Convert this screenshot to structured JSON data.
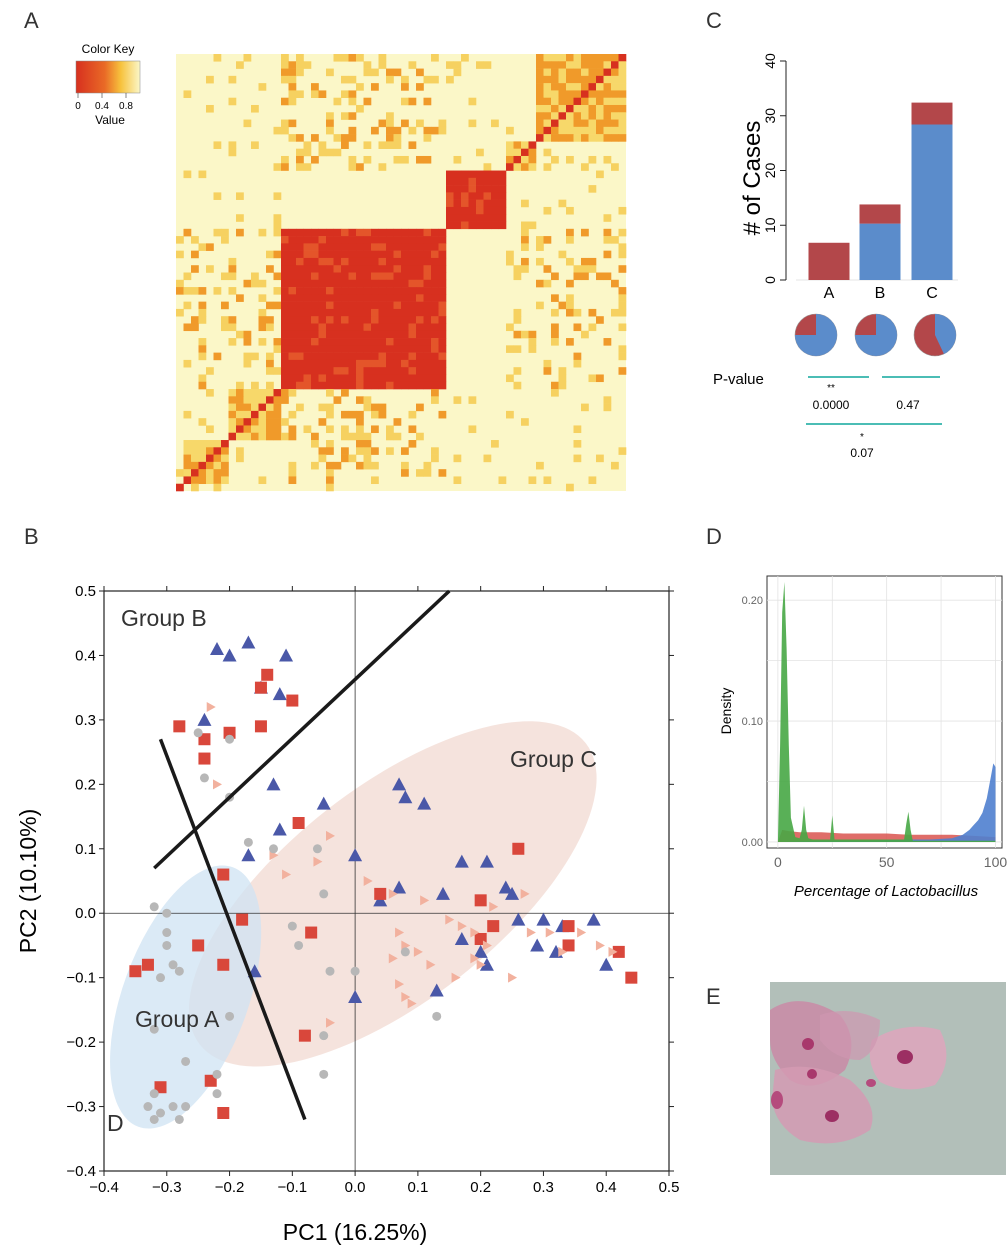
{
  "panel_labels": {
    "a": "A",
    "b": "B",
    "c": "C",
    "d": "D",
    "e": "E"
  },
  "panel_a": {
    "color_key_title": "Color Key",
    "color_key_ticks": [
      "0",
      "0.4",
      "0.8"
    ],
    "color_key_value_label": "Value",
    "heatmap_colors": {
      "low": "#d7301f",
      "mid": "#f09a2a",
      "high": "#fbf7c8"
    },
    "matrix_size": 60,
    "clusters": [
      [
        1,
        6
      ],
      [
        7,
        13
      ],
      [
        14,
        35
      ],
      [
        36,
        43
      ],
      [
        44,
        47
      ],
      [
        48,
        59
      ]
    ]
  },
  "chart_data": [
    {
      "id": "B",
      "type": "scatter",
      "title": "",
      "xlabel": "PC1 (16.25%)",
      "ylabel": "PC2 (10.10%)",
      "xlim": [
        -0.4,
        0.5
      ],
      "ylim": [
        -0.4,
        0.5
      ],
      "xticks": [
        "−0.4",
        "−0.3",
        "−0.2",
        "−0.1",
        "0.0",
        "0.1",
        "0.2",
        "0.3",
        "0.4",
        "0.5"
      ],
      "yticks": [
        "−0.4",
        "−0.3",
        "−0.2",
        "−0.1",
        "0.0",
        "0.1",
        "0.2",
        "0.3",
        "0.4",
        "0.5"
      ],
      "groups": [
        {
          "label": "Group A",
          "color": "#cfe3f3",
          "cx": -0.27,
          "cy": -0.13,
          "rx": 0.1,
          "ry": 0.22,
          "angle_deg": 20
        },
        {
          "label": "Group B",
          "color": "#f3dcd5",
          "cx": 0.06,
          "cy": 0.03,
          "rx": 0.39,
          "ry": 0.17,
          "angle_deg": -38
        },
        {
          "label": "Group C",
          "color": "#f3dcd5",
          "cx": 0.0,
          "cy": 0.0,
          "rx": 0.0,
          "ry": 0.0,
          "angle_deg": 0
        }
      ],
      "extra_label": "D",
      "lines": [
        {
          "x1": -0.32,
          "y1": 0.07,
          "x2": 0.15,
          "y2": 0.5
        },
        {
          "x1": -0.31,
          "y1": 0.27,
          "x2": -0.08,
          "y2": -0.32
        }
      ],
      "series": [
        {
          "marker": "triangle",
          "color": "#4a58a8",
          "points": [
            [
              -0.22,
              0.41
            ],
            [
              -0.2,
              0.4
            ],
            [
              -0.17,
              0.42
            ],
            [
              -0.15,
              0.35
            ],
            [
              -0.12,
              0.34
            ],
            [
              -0.11,
              0.4
            ],
            [
              -0.24,
              0.3
            ],
            [
              -0.13,
              0.2
            ],
            [
              -0.05,
              0.17
            ],
            [
              0.07,
              0.2
            ],
            [
              0.08,
              0.18
            ],
            [
              0.11,
              0.17
            ],
            [
              -0.12,
              0.13
            ],
            [
              -0.17,
              0.09
            ],
            [
              0.0,
              0.09
            ],
            [
              0.07,
              0.04
            ],
            [
              0.04,
              0.02
            ],
            [
              0.14,
              0.03
            ],
            [
              0.17,
              0.08
            ],
            [
              0.21,
              0.08
            ],
            [
              0.24,
              0.04
            ],
            [
              0.25,
              0.03
            ],
            [
              0.26,
              -0.01
            ],
            [
              0.3,
              -0.01
            ],
            [
              0.33,
              -0.02
            ],
            [
              0.38,
              -0.01
            ],
            [
              0.4,
              -0.08
            ],
            [
              0.17,
              -0.04
            ],
            [
              0.2,
              -0.06
            ],
            [
              0.21,
              -0.08
            ],
            [
              0.29,
              -0.05
            ],
            [
              0.32,
              -0.06
            ],
            [
              -0.16,
              -0.09
            ],
            [
              0.0,
              -0.13
            ],
            [
              0.13,
              -0.12
            ]
          ]
        },
        {
          "marker": "square",
          "color": "#d9473b",
          "points": [
            [
              -0.28,
              0.29
            ],
            [
              -0.24,
              0.27
            ],
            [
              -0.24,
              0.24
            ],
            [
              -0.2,
              0.28
            ],
            [
              -0.15,
              0.35
            ],
            [
              -0.14,
              0.37
            ],
            [
              -0.1,
              0.33
            ],
            [
              -0.15,
              0.29
            ],
            [
              -0.09,
              0.14
            ],
            [
              -0.21,
              0.06
            ],
            [
              -0.18,
              -0.01
            ],
            [
              -0.25,
              -0.05
            ],
            [
              -0.21,
              -0.08
            ],
            [
              -0.33,
              -0.08
            ],
            [
              -0.35,
              -0.09
            ],
            [
              -0.07,
              -0.03
            ],
            [
              0.04,
              0.03
            ],
            [
              0.2,
              0.02
            ],
            [
              0.26,
              0.1
            ],
            [
              0.22,
              -0.02
            ],
            [
              0.2,
              -0.04
            ],
            [
              0.34,
              -0.02
            ],
            [
              0.34,
              -0.05
            ],
            [
              0.42,
              -0.06
            ],
            [
              0.44,
              -0.1
            ],
            [
              -0.08,
              -0.19
            ],
            [
              -0.23,
              -0.26
            ],
            [
              -0.21,
              -0.31
            ],
            [
              -0.31,
              -0.27
            ]
          ]
        },
        {
          "marker": "triangle-right",
          "color": "#f2b19e",
          "points": [
            [
              -0.23,
              0.32
            ],
            [
              -0.22,
              0.2
            ],
            [
              -0.04,
              0.12
            ],
            [
              0.02,
              0.05
            ],
            [
              0.06,
              0.03
            ],
            [
              0.11,
              0.02
            ],
            [
              0.15,
              -0.01
            ],
            [
              0.17,
              -0.02
            ],
            [
              0.19,
              -0.03
            ],
            [
              0.22,
              0.01
            ],
            [
              0.27,
              0.03
            ],
            [
              0.28,
              -0.03
            ],
            [
              0.31,
              -0.03
            ],
            [
              0.33,
              -0.06
            ],
            [
              0.36,
              -0.03
            ],
            [
              0.39,
              -0.05
            ],
            [
              0.41,
              -0.06
            ],
            [
              0.07,
              -0.03
            ],
            [
              0.08,
              -0.05
            ],
            [
              0.06,
              -0.07
            ],
            [
              0.1,
              -0.06
            ],
            [
              0.19,
              -0.07
            ],
            [
              0.21,
              -0.05
            ],
            [
              0.08,
              -0.13
            ],
            [
              0.09,
              -0.14
            ],
            [
              0.07,
              -0.11
            ],
            [
              0.12,
              -0.08
            ],
            [
              0.16,
              -0.1
            ],
            [
              0.2,
              -0.08
            ],
            [
              0.25,
              -0.1
            ],
            [
              -0.04,
              -0.17
            ],
            [
              -0.13,
              0.09
            ],
            [
              -0.11,
              0.06
            ],
            [
              -0.06,
              0.08
            ]
          ]
        },
        {
          "marker": "circle",
          "color": "#b7b7b7",
          "points": [
            [
              -0.25,
              0.28
            ],
            [
              -0.2,
              0.27
            ],
            [
              -0.2,
              0.18
            ],
            [
              -0.24,
              0.21
            ],
            [
              -0.17,
              0.11
            ],
            [
              -0.13,
              0.1
            ],
            [
              -0.06,
              0.1
            ],
            [
              -0.05,
              0.03
            ],
            [
              -0.1,
              -0.02
            ],
            [
              -0.09,
              -0.05
            ],
            [
              -0.3,
              -0.03
            ],
            [
              -0.3,
              0.0
            ],
            [
              -0.32,
              0.01
            ],
            [
              -0.3,
              -0.05
            ],
            [
              -0.29,
              -0.08
            ],
            [
              -0.31,
              -0.1
            ],
            [
              -0.28,
              -0.09
            ],
            [
              -0.32,
              -0.18
            ],
            [
              -0.27,
              -0.23
            ],
            [
              -0.2,
              -0.16
            ],
            [
              -0.22,
              -0.25
            ],
            [
              -0.22,
              -0.28
            ],
            [
              -0.33,
              -0.3
            ],
            [
              -0.31,
              -0.31
            ],
            [
              -0.29,
              -0.3
            ],
            [
              -0.28,
              -0.32
            ],
            [
              -0.27,
              -0.3
            ],
            [
              -0.32,
              -0.28
            ],
            [
              -0.04,
              -0.09
            ],
            [
              -0.05,
              -0.19
            ],
            [
              -0.05,
              -0.25
            ],
            [
              0.08,
              -0.06
            ],
            [
              0.0,
              -0.09
            ],
            [
              0.13,
              -0.16
            ],
            [
              -0.32,
              -0.32
            ]
          ]
        }
      ]
    },
    {
      "id": "C",
      "type": "bar",
      "title": "",
      "xlabel": "",
      "ylabel": "# of Cases",
      "ylim": [
        0,
        40
      ],
      "yticks": [
        "0",
        "10",
        "20",
        "30",
        "40"
      ],
      "categories": [
        "A",
        "B",
        "C"
      ],
      "series": [
        {
          "color": "#5b8ccb",
          "values": [
            0,
            10.3,
            28.4
          ]
        },
        {
          "color": "#b3474a",
          "values": [
            6.8,
            3.5,
            4.0
          ]
        }
      ],
      "pie_fraction_blue": [
        0.75,
        0.75,
        0.43
      ],
      "pvalue_title": "P-value",
      "comparisons": [
        {
          "stars": "**",
          "value": "0.0000"
        },
        {
          "stars": "",
          "value": "0.47"
        },
        {
          "stars": "*",
          "value": "0.07"
        }
      ]
    },
    {
      "id": "D",
      "type": "area",
      "title": "",
      "xlabel": "Percentage of Lactobacillus",
      "ylabel": "Density",
      "xlim": [
        -5,
        103
      ],
      "ylim": [
        -0.005,
        0.22
      ],
      "xticks": [
        "0",
        "50",
        "100"
      ],
      "yticks": [
        "0.00",
        "0.10",
        "0.20"
      ],
      "series": [
        {
          "color": "#d9534f",
          "x": [
            0,
            2,
            5,
            10,
            20,
            30,
            40,
            50,
            60,
            70,
            80,
            90,
            100
          ],
          "y": [
            0,
            0.01,
            0.009,
            0.008,
            0.008,
            0.007,
            0.007,
            0.007,
            0.006,
            0.006,
            0.006,
            0.005,
            0.004
          ]
        },
        {
          "color": "#4f7fcf",
          "x": [
            0,
            20,
            40,
            60,
            70,
            80,
            85,
            88,
            90,
            92,
            94,
            96,
            98,
            99,
            100
          ],
          "y": [
            0,
            0.001,
            0.001,
            0.002,
            0.002,
            0.003,
            0.006,
            0.01,
            0.014,
            0.018,
            0.024,
            0.036,
            0.055,
            0.065,
            0.062
          ]
        },
        {
          "color": "#47a745",
          "x": [
            0,
            1,
            2,
            3,
            4,
            5,
            6,
            8,
            10,
            11,
            12,
            13,
            14,
            16,
            24,
            25,
            26,
            58,
            59,
            60,
            61,
            62,
            100
          ],
          "y": [
            0,
            0.08,
            0.19,
            0.215,
            0.16,
            0.08,
            0.02,
            0.004,
            0.003,
            0.01,
            0.03,
            0.01,
            0.003,
            0.002,
            0.002,
            0.022,
            0.002,
            0.002,
            0.015,
            0.025,
            0.01,
            0.001,
            0.001
          ]
        }
      ]
    }
  ]
}
